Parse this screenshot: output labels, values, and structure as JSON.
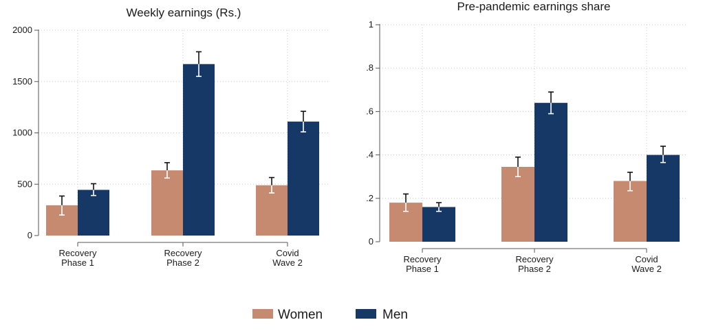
{
  "legend": [
    {
      "name": "Women",
      "color": "#c68a70"
    },
    {
      "name": "Men",
      "color": "#163866"
    }
  ],
  "chart_data": [
    {
      "type": "bar",
      "title": "Weekly earnings (Rs.)",
      "xlabel": "",
      "ylabel": "",
      "categories": [
        [
          "Recovery",
          "Phase 1"
        ],
        [
          "Recovery",
          "Phase 2"
        ],
        [
          "Covid",
          "Wave 2"
        ]
      ],
      "ylim": [
        0,
        2000
      ],
      "yticks": [
        0,
        500,
        1000,
        1500,
        2000
      ],
      "ytick_labels": [
        "0",
        "500",
        "1000",
        "1500",
        "2000"
      ],
      "grid": true,
      "series": [
        {
          "name": "Women",
          "values": [
            295,
            635,
            490
          ],
          "err_low": [
            200,
            560,
            415
          ],
          "err_high": [
            385,
            710,
            565
          ]
        },
        {
          "name": "Men",
          "values": [
            445,
            1670,
            1110
          ],
          "err_low": [
            390,
            1550,
            1010
          ],
          "err_high": [
            505,
            1790,
            1210
          ]
        }
      ]
    },
    {
      "type": "bar",
      "title": "Pre-pandemic earnings share",
      "xlabel": "",
      "ylabel": "",
      "categories": [
        [
          "Recovery",
          "Phase 1"
        ],
        [
          "Recovery",
          "Phase 2"
        ],
        [
          "Covid",
          "Wave 2"
        ]
      ],
      "ylim": [
        0,
        1
      ],
      "yticks": [
        0,
        0.2,
        0.4,
        0.6,
        0.8,
        1
      ],
      "ytick_labels": [
        "0",
        ".2",
        ".4",
        ".6",
        ".8",
        "1"
      ],
      "grid": true,
      "series": [
        {
          "name": "Women",
          "values": [
            0.18,
            0.345,
            0.28
          ],
          "err_low": [
            0.14,
            0.3,
            0.235
          ],
          "err_high": [
            0.22,
            0.39,
            0.32
          ]
        },
        {
          "name": "Men",
          "values": [
            0.16,
            0.64,
            0.4
          ],
          "err_low": [
            0.14,
            0.59,
            0.365
          ],
          "err_high": [
            0.18,
            0.69,
            0.44
          ]
        }
      ]
    }
  ]
}
